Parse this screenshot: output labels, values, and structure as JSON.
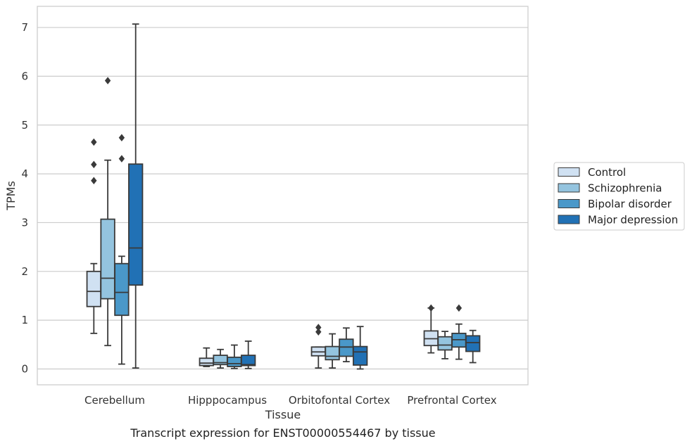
{
  "chart_data": {
    "type": "box",
    "title": "",
    "caption": "Transcript expression for ENST00000554467 by tissue",
    "xlabel": "Tissue",
    "ylabel": "TPMs",
    "ylim": [
      -0.35,
      7.45
    ],
    "yticks": [
      0,
      1,
      2,
      3,
      4,
      5,
      6,
      7
    ],
    "grid": "horizontal",
    "legend_position": "right",
    "categories": [
      "Cerebellum",
      "Hipppocampus",
      "Orbitofontal Cortex",
      "Prefrontal Cortex"
    ],
    "series": [
      {
        "name": "Control",
        "color": "#d0e1f2",
        "boxes": [
          {
            "whislo": 0.73,
            "q1": 1.28,
            "med": 1.59,
            "q3": 2.0,
            "whishi": 2.16,
            "fliers": [
              3.86,
              4.19,
              4.65
            ]
          },
          {
            "whislo": 0.05,
            "q1": 0.07,
            "med": 0.12,
            "q3": 0.22,
            "whishi": 0.43,
            "fliers": []
          },
          {
            "whislo": 0.02,
            "q1": 0.27,
            "med": 0.35,
            "q3": 0.45,
            "whishi": 0.45,
            "fliers": [
              0.76,
              0.85
            ]
          },
          {
            "whislo": 0.33,
            "q1": 0.48,
            "med": 0.62,
            "q3": 0.78,
            "whishi": 1.25,
            "fliers": [
              1.25
            ]
          }
        ]
      },
      {
        "name": "Schizophrenia",
        "color": "#94c4df",
        "boxes": [
          {
            "whislo": 0.48,
            "q1": 1.44,
            "med": 1.86,
            "q3": 3.07,
            "whishi": 4.28,
            "fliers": [
              5.91
            ]
          },
          {
            "whislo": 0.02,
            "q1": 0.09,
            "med": 0.13,
            "q3": 0.28,
            "whishi": 0.4,
            "fliers": []
          },
          {
            "whislo": 0.02,
            "q1": 0.19,
            "med": 0.26,
            "q3": 0.46,
            "whishi": 0.72,
            "fliers": []
          },
          {
            "whislo": 0.21,
            "q1": 0.39,
            "med": 0.49,
            "q3": 0.66,
            "whishi": 0.77,
            "fliers": []
          }
        ]
      },
      {
        "name": "Bipolar disorder",
        "color": "#4a98c9",
        "boxes": [
          {
            "whislo": 0.1,
            "q1": 1.1,
            "med": 1.57,
            "q3": 2.16,
            "whishi": 2.31,
            "fliers": [
              4.31,
              4.74
            ]
          },
          {
            "whislo": 0.01,
            "q1": 0.05,
            "med": 0.11,
            "q3": 0.24,
            "whishi": 0.49,
            "fliers": []
          },
          {
            "whislo": 0.15,
            "q1": 0.26,
            "med": 0.45,
            "q3": 0.61,
            "whishi": 0.84,
            "fliers": []
          },
          {
            "whislo": 0.2,
            "q1": 0.45,
            "med": 0.6,
            "q3": 0.73,
            "whishi": 0.92,
            "fliers": [
              1.25
            ]
          }
        ]
      },
      {
        "name": "Major depression",
        "color": "#2171b5",
        "boxes": [
          {
            "whislo": 0.02,
            "q1": 1.72,
            "med": 2.48,
            "q3": 4.2,
            "whishi": 7.07,
            "fliers": []
          },
          {
            "whislo": 0.01,
            "q1": 0.07,
            "med": 0.09,
            "q3": 0.28,
            "whishi": 0.57,
            "fliers": []
          },
          {
            "whislo": 0.0,
            "q1": 0.08,
            "med": 0.35,
            "q3": 0.46,
            "whishi": 0.87,
            "fliers": []
          },
          {
            "whislo": 0.13,
            "q1": 0.36,
            "med": 0.54,
            "q3": 0.68,
            "whishi": 0.79,
            "fliers": []
          }
        ]
      }
    ]
  }
}
